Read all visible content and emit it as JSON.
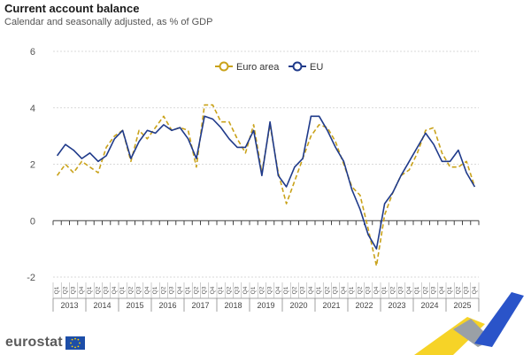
{
  "header": {
    "title": "Current account balance",
    "subtitle": "Calendar and seasonally adjusted, as % of GDP"
  },
  "brand": {
    "name": "eurostat"
  },
  "colors": {
    "euro_area": "#c9a21a",
    "eu": "#1f3a8a",
    "grid": "#d9d9d9",
    "axis_text": "#555555"
  },
  "chart_data": {
    "type": "line",
    "title": "Current account balance",
    "subtitle": "Calendar and seasonally adjusted, as % of GDP",
    "xlabel": "",
    "ylabel": "",
    "ylim": [
      -2,
      6
    ],
    "yticks": [
      -2,
      0,
      2,
      4,
      6
    ],
    "grid": true,
    "legend_position": "top-center",
    "quarter_labels": [
      "Q1",
      "Q2",
      "Q3",
      "Q4"
    ],
    "years": [
      "2013",
      "2014",
      "2015",
      "2016",
      "2017",
      "2018",
      "2019",
      "2020",
      "2021",
      "2022",
      "2023",
      "2024",
      "2025"
    ],
    "series": [
      {
        "name": "Euro area",
        "style": "dashed",
        "values": [
          1.6,
          2.0,
          1.7,
          2.1,
          1.9,
          1.7,
          2.6,
          3.0,
          3.2,
          2.1,
          3.2,
          2.9,
          3.3,
          3.7,
          3.2,
          3.3,
          3.2,
          1.9,
          4.1,
          4.1,
          3.5,
          3.5,
          2.9,
          2.4,
          3.4,
          1.7,
          3.4,
          1.7,
          0.6,
          1.4,
          2.2,
          3.0,
          3.4,
          3.3,
          2.8,
          2.0,
          1.2,
          0.9,
          -0.3,
          -1.6,
          0.2,
          1.0,
          1.6,
          1.8,
          2.4,
          3.2,
          3.3,
          2.4,
          1.9,
          1.9,
          2.1,
          1.2
        ]
      },
      {
        "name": "EU",
        "style": "solid",
        "values": [
          2.3,
          2.7,
          2.5,
          2.2,
          2.4,
          2.1,
          2.3,
          2.9,
          3.2,
          2.2,
          2.8,
          3.2,
          3.1,
          3.4,
          3.2,
          3.3,
          2.9,
          2.2,
          3.7,
          3.6,
          3.3,
          2.9,
          2.6,
          2.6,
          3.2,
          1.6,
          3.5,
          1.6,
          1.2,
          1.9,
          2.2,
          3.7,
          3.7,
          3.2,
          2.6,
          2.1,
          1.1,
          0.4,
          -0.5,
          -1.0,
          0.6,
          1.0,
          1.6,
          2.1,
          2.6,
          3.1,
          2.7,
          2.1,
          2.1,
          2.5,
          1.7,
          1.2
        ]
      }
    ]
  }
}
